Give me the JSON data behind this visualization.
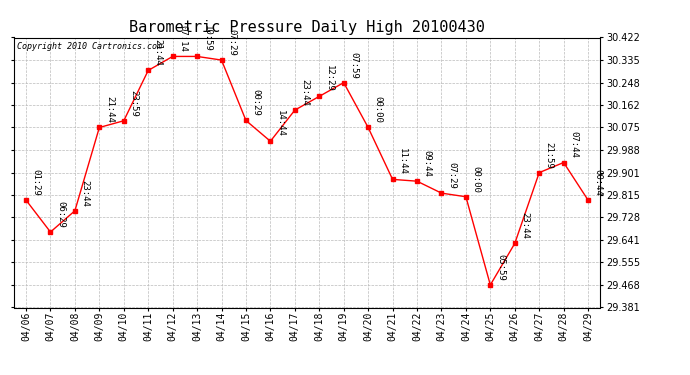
{
  "title": "Barometric Pressure Daily High 20100430",
  "copyright": "Copyright 2010 Cartronics.com",
  "dates": [
    "04/06",
    "04/07",
    "04/08",
    "04/09",
    "04/10",
    "04/11",
    "04/12",
    "04/13",
    "04/14",
    "04/15",
    "04/16",
    "04/17",
    "04/18",
    "04/19",
    "04/20",
    "04/21",
    "04/22",
    "04/23",
    "04/24",
    "04/25",
    "04/26",
    "04/27",
    "04/28",
    "04/29"
  ],
  "values": [
    29.795,
    29.672,
    29.754,
    30.075,
    30.101,
    30.295,
    30.349,
    30.349,
    30.335,
    30.102,
    30.022,
    30.142,
    30.195,
    30.248,
    30.075,
    29.875,
    29.868,
    29.822,
    29.808,
    29.468,
    29.628,
    29.901,
    29.94,
    29.795
  ],
  "time_labels": [
    "01:29",
    "06:29",
    "23:44",
    "21:44",
    "23:59",
    "21:44",
    "07:14",
    "10:59",
    "07:29",
    "00:29",
    "14:44",
    "23:44",
    "12:29",
    "07:59",
    "00:00",
    "11:44",
    "09:44",
    "07:29",
    "00:00",
    "05:59",
    "23:44",
    "21:59",
    "07:44",
    "00:44"
  ],
  "ylim_min": 29.381,
  "ylim_max": 30.422,
  "yticks": [
    29.381,
    29.468,
    29.555,
    29.641,
    29.728,
    29.815,
    29.901,
    29.988,
    30.075,
    30.162,
    30.248,
    30.335,
    30.422
  ],
  "line_color": "#ff0000",
  "marker_color": "#ff0000",
  "bg_color": "#ffffff",
  "grid_color": "#bbbbbb",
  "title_fontsize": 11,
  "tick_fontsize": 7,
  "label_fontsize": 6.5
}
